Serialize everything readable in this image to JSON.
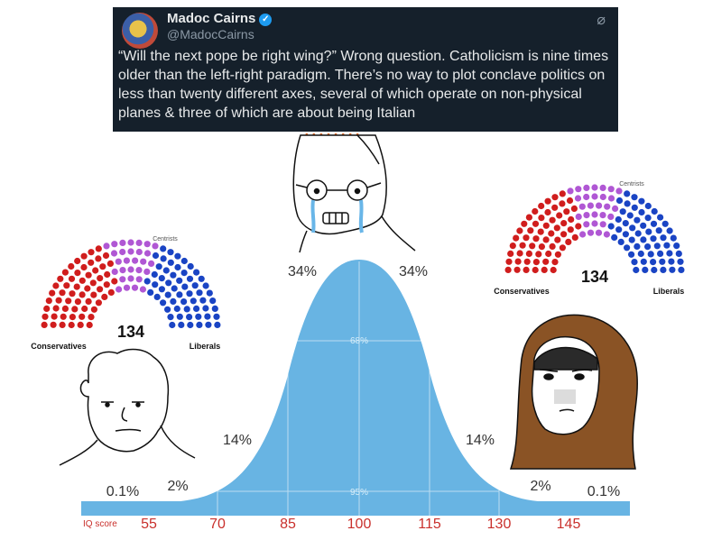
{
  "tweet": {
    "name": "Madoc Cairns",
    "handle": "@MadocCairns",
    "text": "“Will the next pope be right wing?” Wrong question. Catholicism is nine times older than the left-right paradigm. There’s no way to plot conclave politics on less than twenty different axes, several of which operate on non-physical planes & three of which are about being Italian"
  },
  "bell_curve": {
    "percentages": [
      "0.1%",
      "2%",
      "14%",
      "34%",
      "34%",
      "14%",
      "2%",
      "0.1%"
    ],
    "center_labels": [
      "68%",
      "95%"
    ],
    "axis_title": "IQ score",
    "ticks": [
      55,
      70,
      85,
      100,
      115,
      130,
      145
    ]
  },
  "parliament_left": {
    "top_label": "Centrists",
    "count": "134",
    "left_label": "Conservatives",
    "right_label": "Liberals"
  },
  "parliament_right": {
    "top_label": "Centrists",
    "count": "134",
    "left_label": "Conservatives",
    "right_label": "Liberals"
  },
  "colors": {
    "curve": "#68b4e3",
    "tweet_bg": "#15202b",
    "conservatives": "#d01d1d",
    "centrists": "#b057d4",
    "liberals": "#1a44c4",
    "ticks": "#c9302c",
    "hood": "#8a5325"
  }
}
